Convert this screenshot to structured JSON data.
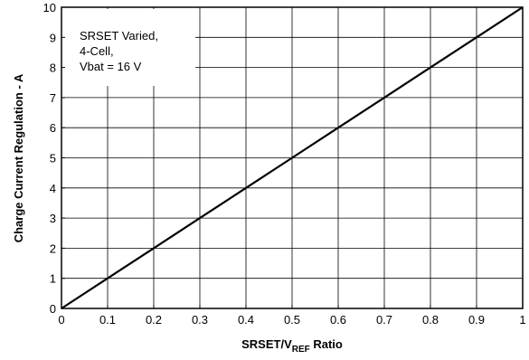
{
  "chart_data": {
    "type": "line",
    "title": "",
    "xlabel": {
      "main": "SRSET/V",
      "subscript": "REF",
      "suffix": " Ratio"
    },
    "ylabel": "Charge Current Regulation - A",
    "xlim": [
      0,
      1
    ],
    "ylim": [
      0,
      10
    ],
    "x_ticks": [
      0,
      0.1,
      0.2,
      0.3,
      0.4,
      0.5,
      0.6,
      0.7,
      0.8,
      0.9,
      1
    ],
    "x_tick_labels": [
      "0",
      "0.1",
      "0.2",
      "0.3",
      "0.4",
      "0.5",
      "0.6",
      "0.7",
      "0.8",
      "0.9",
      "1"
    ],
    "y_ticks": [
      0,
      1,
      2,
      3,
      4,
      5,
      6,
      7,
      8,
      9,
      10
    ],
    "y_tick_labels": [
      "0",
      "1",
      "2",
      "3",
      "4",
      "5",
      "6",
      "7",
      "8",
      "9",
      "10"
    ],
    "grid": true,
    "series": [
      {
        "x": [
          0,
          0.03,
          0.1,
          0.2,
          0.3,
          0.4,
          0.5,
          0.6,
          0.7,
          0.8,
          0.9,
          1.0
        ],
        "y": [
          0.0,
          0.3,
          1.0,
          2.0,
          3.0,
          4.0,
          5.0,
          6.0,
          7.0,
          8.0,
          9.0,
          10.0
        ]
      }
    ],
    "annotation": {
      "lines": [
        "SRSET Varied,",
        "4-Cell,",
        "Vbat = 16 V"
      ]
    },
    "line_color": "#000000",
    "grid_color": "#000000"
  }
}
